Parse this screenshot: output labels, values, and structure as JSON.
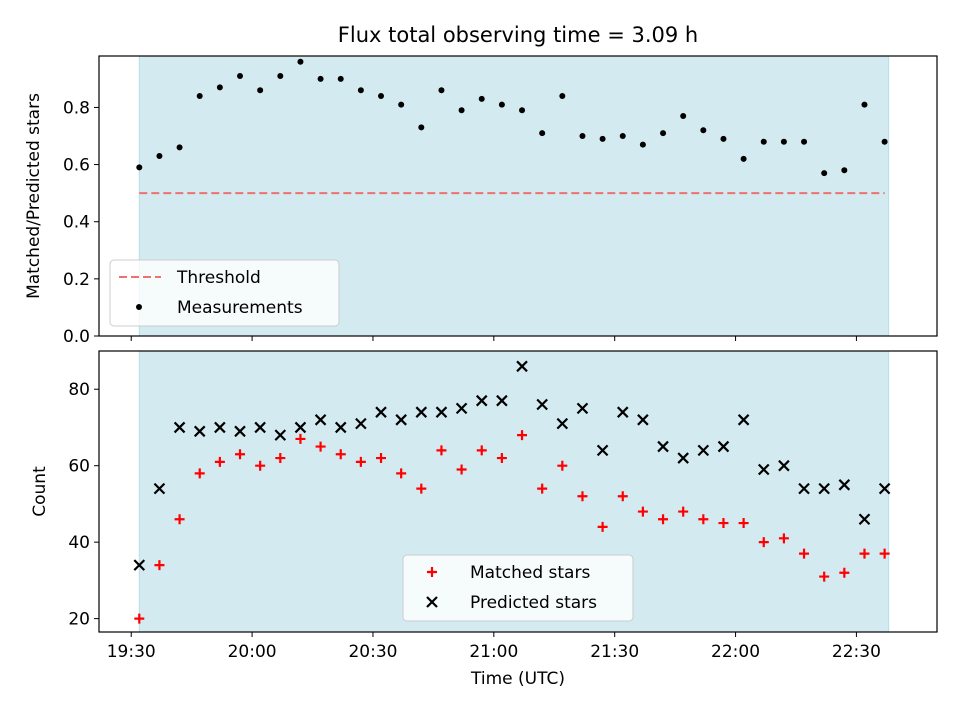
{
  "figure": {
    "title": "Flux total observing time = 3.09 h"
  },
  "colors": {
    "observing_band": "#d3eaf0",
    "threshold_line": "#f07070",
    "matched_marker": "#ff0000",
    "predicted_marker": "#000000",
    "measurement_marker": "#000000"
  },
  "chart_data": [
    {
      "type": "scatter",
      "ylabel": "Matched/Predicted stars",
      "ylim": [
        0,
        0.98
      ],
      "y_ticks": [
        "0.0",
        "0.2",
        "0.4",
        "0.6",
        "0.8"
      ],
      "y_tick_values": [
        0,
        0.2,
        0.4,
        0.6,
        0.8
      ],
      "x_start": "19:32",
      "x_end": "22:38",
      "legend_position": "lower-left",
      "shaded_span": [
        "19:32",
        "22:38"
      ],
      "threshold": {
        "name": "Threshold",
        "value": 0.5,
        "style": "dashed"
      },
      "series": [
        {
          "name": "Measurements",
          "x": [
            "19:32",
            "19:37",
            "19:42",
            "19:47",
            "19:52",
            "19:57",
            "20:02",
            "20:07",
            "20:12",
            "20:17",
            "20:22",
            "20:27",
            "20:32",
            "20:37",
            "20:42",
            "20:47",
            "20:52",
            "20:57",
            "21:02",
            "21:07",
            "21:12",
            "21:17",
            "21:22",
            "21:27",
            "21:32",
            "21:37",
            "21:42",
            "21:47",
            "21:52",
            "21:57",
            "22:02",
            "22:07",
            "22:12",
            "22:17",
            "22:22",
            "22:27",
            "22:32",
            "22:37"
          ],
          "y": [
            0.59,
            0.63,
            0.66,
            0.84,
            0.87,
            0.91,
            0.86,
            0.91,
            0.96,
            0.9,
            0.9,
            0.86,
            0.84,
            0.81,
            0.73,
            0.86,
            0.79,
            0.83,
            0.81,
            0.79,
            0.71,
            0.84,
            0.7,
            0.69,
            0.7,
            0.67,
            0.71,
            0.77,
            0.72,
            0.69,
            0.62,
            0.68,
            0.68,
            0.68,
            0.57,
            0.58,
            0.81,
            0.68
          ]
        }
      ]
    },
    {
      "type": "scatter",
      "xlabel": "Time (UTC)",
      "ylabel": "Count",
      "ylim": [
        16.5,
        90
      ],
      "y_ticks": [
        "20",
        "40",
        "60",
        "80"
      ],
      "y_tick_values": [
        20,
        40,
        60,
        80
      ],
      "x_ticks": [
        "19:30",
        "20:00",
        "20:30",
        "21:00",
        "21:30",
        "22:00",
        "22:30"
      ],
      "x_start": "19:32",
      "x_end": "22:38",
      "legend_position": "lower-center",
      "shaded_span": [
        "19:32",
        "22:38"
      ],
      "series": [
        {
          "name": "Matched stars",
          "marker": "plus",
          "x": [
            "19:32",
            "19:37",
            "19:42",
            "19:47",
            "19:52",
            "19:57",
            "20:02",
            "20:07",
            "20:12",
            "20:17",
            "20:22",
            "20:27",
            "20:32",
            "20:37",
            "20:42",
            "20:47",
            "20:52",
            "20:57",
            "21:02",
            "21:07",
            "21:12",
            "21:17",
            "21:22",
            "21:27",
            "21:32",
            "21:37",
            "21:42",
            "21:47",
            "21:52",
            "21:57",
            "22:02",
            "22:07",
            "22:12",
            "22:17",
            "22:22",
            "22:27",
            "22:32",
            "22:37"
          ],
          "y": [
            20,
            34,
            46,
            58,
            61,
            63,
            60,
            62,
            67,
            65,
            63,
            61,
            62,
            58,
            54,
            64,
            59,
            64,
            62,
            68,
            54,
            60,
            52,
            44,
            52,
            48,
            46,
            48,
            46,
            45,
            45,
            40,
            41,
            37,
            31,
            32,
            37,
            37
          ]
        },
        {
          "name": "Predicted stars",
          "marker": "x",
          "x": [
            "19:32",
            "19:37",
            "19:42",
            "19:47",
            "19:52",
            "19:57",
            "20:02",
            "20:07",
            "20:12",
            "20:17",
            "20:22",
            "20:27",
            "20:32",
            "20:37",
            "20:42",
            "20:47",
            "20:52",
            "20:57",
            "21:02",
            "21:07",
            "21:12",
            "21:17",
            "21:22",
            "21:27",
            "21:32",
            "21:37",
            "21:42",
            "21:47",
            "21:52",
            "21:57",
            "22:02",
            "22:07",
            "22:12",
            "22:17",
            "22:22",
            "22:27",
            "22:32",
            "22:37"
          ],
          "y": [
            34,
            54,
            70,
            69,
            70,
            69,
            70,
            68,
            70,
            72,
            70,
            71,
            74,
            72,
            74,
            74,
            75,
            77,
            77,
            86,
            76,
            71,
            75,
            64,
            74,
            72,
            65,
            62,
            64,
            65,
            72,
            59,
            60,
            54,
            54,
            55,
            46,
            54
          ]
        }
      ]
    }
  ]
}
